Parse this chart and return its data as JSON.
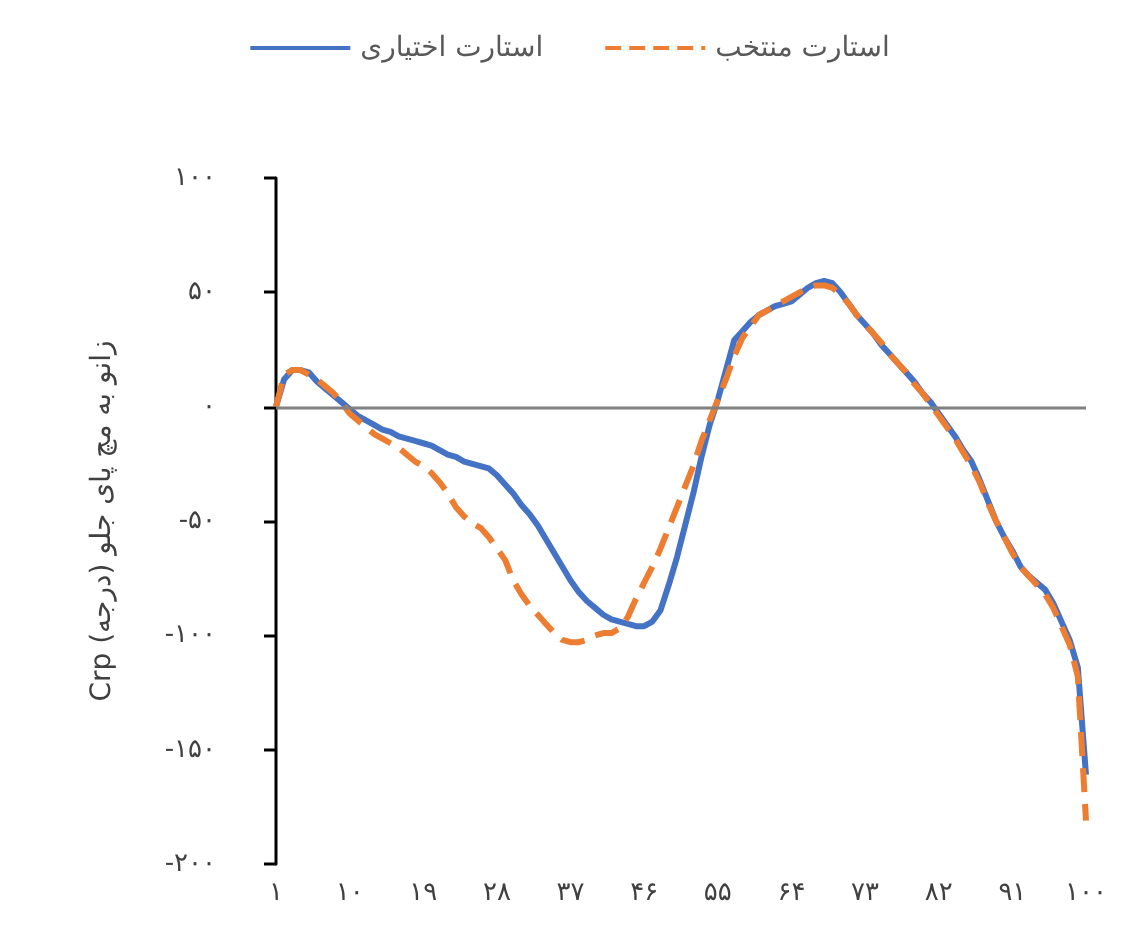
{
  "chart_data": {
    "type": "line",
    "ylabel": "Crp زانو به مچ پای جلو (درجه)",
    "categories": [
      "۱",
      null,
      null,
      null,
      null,
      null,
      null,
      null,
      null,
      "۱۰",
      null,
      null,
      null,
      null,
      null,
      null,
      null,
      null,
      "۱۹",
      null,
      null,
      null,
      null,
      null,
      null,
      null,
      null,
      "۲۸",
      null,
      null,
      null,
      null,
      null,
      null,
      null,
      null,
      "۳۷",
      null,
      null,
      null,
      null,
      null,
      null,
      null,
      null,
      "۴۶",
      null,
      null,
      null,
      null,
      null,
      null,
      null,
      null,
      "۵۵",
      null,
      null,
      null,
      null,
      null,
      null,
      null,
      null,
      "۶۴",
      null,
      null,
      null,
      null,
      null,
      null,
      null,
      null,
      "۷۳",
      null,
      null,
      null,
      null,
      null,
      null,
      null,
      null,
      "۸۲",
      null,
      null,
      null,
      null,
      null,
      null,
      null,
      null,
      "۹۱",
      null,
      null,
      null,
      null,
      null,
      null,
      null,
      null,
      "۱۰۰"
    ],
    "series": [
      {
        "name": "استارت اختیاری",
        "color": "#4472c4",
        "line_style": "solid",
        "values": [
          0,
          12,
          16,
          16,
          15,
          11,
          8,
          5,
          2,
          -1,
          -4,
          -6,
          -8,
          -10,
          -11,
          -13,
          -14,
          -15,
          -16,
          -17,
          -19,
          -21,
          -22,
          -24,
          -25,
          -26,
          -27,
          -30,
          -34,
          -38,
          -43,
          -47,
          -52,
          -58,
          -64,
          -70,
          -76,
          -81,
          -85,
          -88,
          -91,
          -93,
          -94,
          -95,
          -96,
          -96,
          -94,
          -89,
          -78,
          -66,
          -52,
          -38,
          -22,
          -8,
          3,
          16,
          29,
          33,
          37,
          40,
          42,
          44,
          45,
          46,
          49,
          52,
          54,
          55,
          54,
          50,
          45,
          40,
          36,
          32,
          27,
          23,
          19,
          15,
          11,
          6,
          2,
          -3,
          -8,
          -13,
          -19,
          -24,
          -32,
          -41,
          -50,
          -57,
          -63,
          -70,
          -74,
          -77,
          -80,
          -86,
          -94,
          -102,
          -114,
          -161
        ]
      },
      {
        "name": "استارت منتخب",
        "color": "#ed7d31",
        "line_style": "dashed",
        "values": [
          0,
          14,
          16,
          16,
          14,
          12,
          9,
          6,
          2,
          -3,
          -6,
          -9,
          -12,
          -14,
          -16,
          -18,
          -21,
          -24,
          -26,
          -29,
          -33,
          -38,
          -44,
          -48,
          -51,
          -53,
          -57,
          -62,
          -67,
          -76,
          -82,
          -87,
          -91,
          -95,
          -99,
          -102,
          -103,
          -103,
          -102,
          -100,
          -99,
          -99,
          -97,
          -92,
          -84,
          -77,
          -70,
          -62,
          -53,
          -44,
          -35,
          -26,
          -15,
          -6,
          3,
          12,
          22,
          30,
          35,
          40,
          42,
          44,
          46,
          48,
          50,
          52,
          53,
          53,
          52,
          49,
          45,
          40,
          36,
          32,
          28,
          23,
          19,
          15,
          10,
          6,
          1,
          -4,
          -9,
          -14,
          -20,
          -26,
          -33,
          -42,
          -50,
          -57,
          -64,
          -70,
          -74,
          -78,
          -82,
          -88,
          -96,
          -104,
          -118,
          -181
        ]
      }
    ],
    "ylim": [
      -200,
      100
    ],
    "yticks": [
      {
        "value": -200,
        "label": "-۲۰۰"
      },
      {
        "value": -150,
        "label": "-۱۵۰"
      },
      {
        "value": -100,
        "label": "-۱۰۰"
      },
      {
        "value": -50,
        "label": "-۵۰"
      },
      {
        "value": 0,
        "label": "۰"
      },
      {
        "value": 50,
        "label": "۵۰"
      },
      {
        "value": 100,
        "label": "۱۰۰"
      }
    ],
    "ref_lines": [
      {
        "axis": "y",
        "value": 0,
        "color": "#808080"
      }
    ],
    "grid": false,
    "legend": "top",
    "marker": "none"
  }
}
